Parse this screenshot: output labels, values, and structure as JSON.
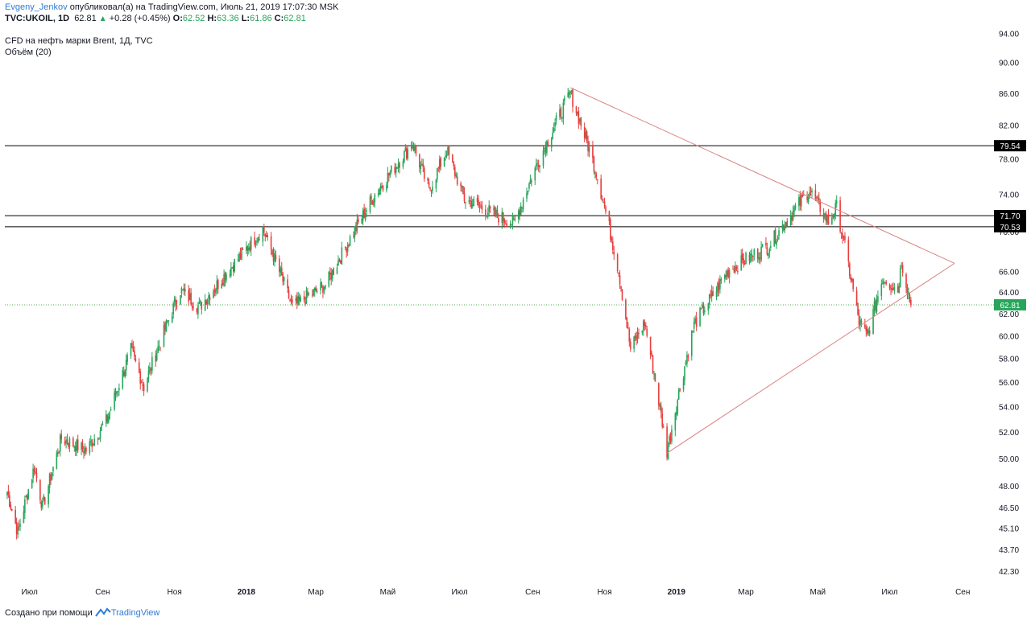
{
  "header": {
    "author": "Evgeny_Jenkov",
    "published": "опубликовал(а) на TradingView.com, Июль 21, 2019 17:07:30 MSK",
    "symbol": "TVC:UKOIL, 1D",
    "last": "62.81",
    "change": "+0.28 (+0.45%)",
    "o_label": "O:",
    "o": "62.52",
    "h_label": "H:",
    "h": "63.36",
    "l_label": "L:",
    "l": "61.86",
    "c_label": "C:",
    "c": "62.81",
    "title": "CFD на нефть марки Brent, 1Д, TVC",
    "indicator": "Объём (20)"
  },
  "footer": {
    "text": "Создано при помощи",
    "brand": "TradingView"
  },
  "colors": {
    "up": "#26a65b",
    "down": "#e83e3e",
    "trendline": "#d98080",
    "level": "#000000",
    "price_line": "#4caf50"
  },
  "chart_data": {
    "type": "candlestick",
    "title": "CFD на нефть марки Brent, 1Д, TVC",
    "y_scale": "log",
    "ylim": [
      41.8,
      95.5
    ],
    "y_ticks": [
      "94.00",
      "90.00",
      "86.00",
      "82.00",
      "78.00",
      "74.00",
      "70.00",
      "66.00",
      "64.00",
      "62.00",
      "60.00",
      "58.00",
      "56.00",
      "54.00",
      "52.00",
      "50.00",
      "48.00",
      "46.50",
      "45.10",
      "43.70",
      "42.30"
    ],
    "x_ticks": [
      {
        "label": "Июл",
        "date": "2017-07-01",
        "bold": false
      },
      {
        "label": "Сен",
        "date": "2017-09-01",
        "bold": false
      },
      {
        "label": "Ноя",
        "date": "2017-11-01",
        "bold": false
      },
      {
        "label": "2018",
        "date": "2018-01-01",
        "bold": true
      },
      {
        "label": "Мар",
        "date": "2018-03-01",
        "bold": false
      },
      {
        "label": "Май",
        "date": "2018-05-01",
        "bold": false
      },
      {
        "label": "Июл",
        "date": "2018-07-01",
        "bold": false
      },
      {
        "label": "Сен",
        "date": "2018-09-01",
        "bold": false
      },
      {
        "label": "Ноя",
        "date": "2018-11-01",
        "bold": false
      },
      {
        "label": "2019",
        "date": "2019-01-01",
        "bold": true
      },
      {
        "label": "Мар",
        "date": "2019-03-01",
        "bold": false
      },
      {
        "label": "Май",
        "date": "2019-05-01",
        "bold": false
      },
      {
        "label": "Июл",
        "date": "2019-07-01",
        "bold": false
      },
      {
        "label": "Сен",
        "date": "2019-09-01",
        "bold": false
      }
    ],
    "x_range": [
      "2017-06-10",
      "2019-09-25"
    ],
    "close_path": [
      {
        "date": "2017-06-10",
        "value": 48.2
      },
      {
        "date": "2017-06-21",
        "value": 44.8
      },
      {
        "date": "2017-07-05",
        "value": 49.4
      },
      {
        "date": "2017-07-12",
        "value": 46.5
      },
      {
        "date": "2017-07-28",
        "value": 51.5
      },
      {
        "date": "2017-08-18",
        "value": 50.6
      },
      {
        "date": "2017-09-05",
        "value": 53.0
      },
      {
        "date": "2017-09-25",
        "value": 58.7
      },
      {
        "date": "2017-10-06",
        "value": 55.6
      },
      {
        "date": "2017-11-06",
        "value": 64.2
      },
      {
        "date": "2017-11-22",
        "value": 62.6
      },
      {
        "date": "2017-12-12",
        "value": 65.4
      },
      {
        "date": "2018-01-15",
        "value": 70.3
      },
      {
        "date": "2018-02-09",
        "value": 62.6
      },
      {
        "date": "2018-03-10",
        "value": 64.8
      },
      {
        "date": "2018-04-20",
        "value": 74.0
      },
      {
        "date": "2018-05-22",
        "value": 79.8
      },
      {
        "date": "2018-06-05",
        "value": 74.4
      },
      {
        "date": "2018-06-20",
        "value": 79.0
      },
      {
        "date": "2018-07-05",
        "value": 73.5
      },
      {
        "date": "2018-08-16",
        "value": 70.8
      },
      {
        "date": "2018-09-05",
        "value": 77.5
      },
      {
        "date": "2018-10-03",
        "value": 86.0
      },
      {
        "date": "2018-10-25",
        "value": 76.5
      },
      {
        "date": "2018-11-13",
        "value": 66.0
      },
      {
        "date": "2018-11-23",
        "value": 58.8
      },
      {
        "date": "2018-12-05",
        "value": 61.2
      },
      {
        "date": "2018-12-24",
        "value": 50.5
      },
      {
        "date": "2019-01-16",
        "value": 61.0
      },
      {
        "date": "2019-02-15",
        "value": 66.2
      },
      {
        "date": "2019-03-20",
        "value": 68.5
      },
      {
        "date": "2019-04-24",
        "value": 74.5
      },
      {
        "date": "2019-05-10",
        "value": 71.0
      },
      {
        "date": "2019-05-17",
        "value": 72.6
      },
      {
        "date": "2019-06-05",
        "value": 61.2
      },
      {
        "date": "2019-06-12",
        "value": 59.9
      },
      {
        "date": "2019-06-25",
        "value": 65.4
      },
      {
        "date": "2019-07-08",
        "value": 64.2
      },
      {
        "date": "2019-07-11",
        "value": 67.0
      },
      {
        "date": "2019-07-19",
        "value": 62.81
      }
    ],
    "horizontal_levels": [
      79.54,
      71.7,
      70.53
    ],
    "last_price": 62.81,
    "trendlines": [
      {
        "from": {
          "date": "2018-10-03",
          "value": 86.7
        },
        "to": {
          "date": "2019-08-25",
          "value": 66.8
        }
      },
      {
        "from": {
          "date": "2018-12-24",
          "value": 50.4
        },
        "to": {
          "date": "2019-08-25",
          "value": 66.8
        }
      }
    ],
    "grid": false,
    "legend": "none"
  }
}
